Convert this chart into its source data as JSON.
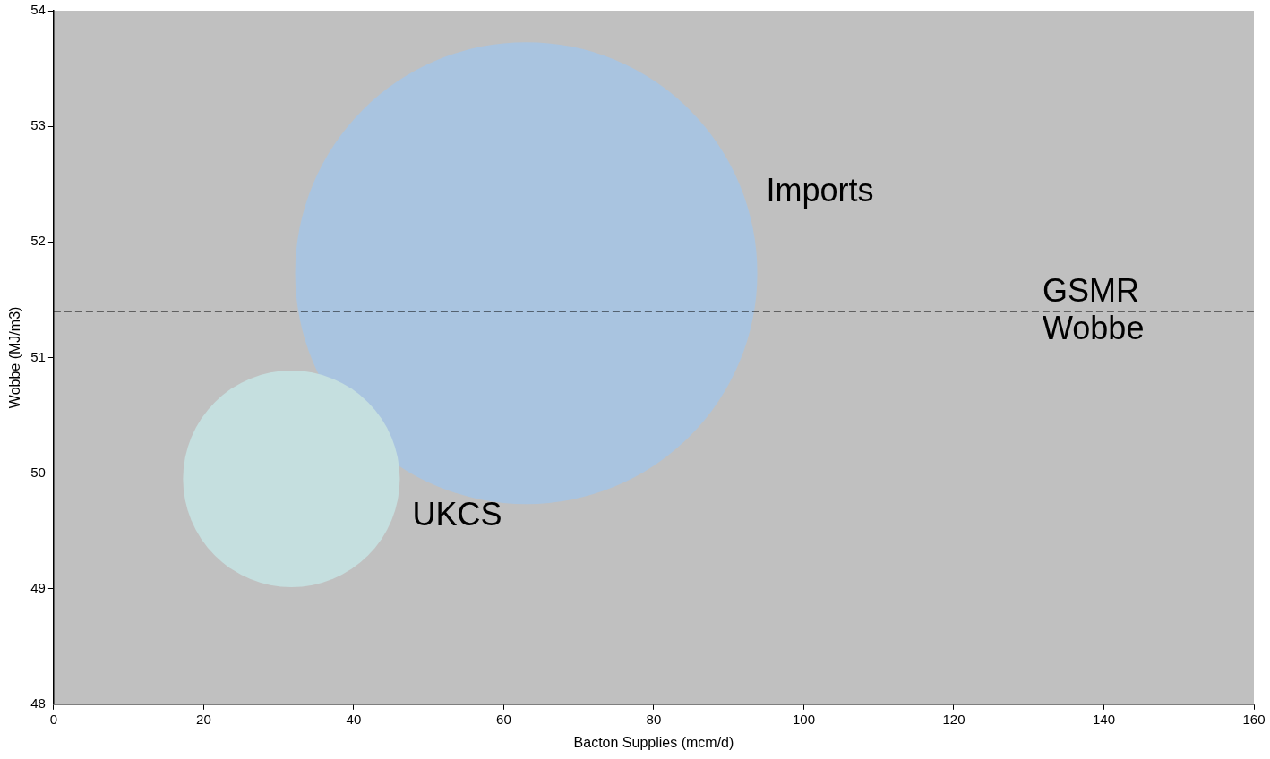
{
  "chart_data": {
    "type": "bubble",
    "xlabel": "Bacton Supplies (mcm/d)",
    "ylabel": "Wobbe (MJ/m3)",
    "xlim": [
      0,
      160
    ],
    "xticks": [
      0,
      20,
      40,
      60,
      80,
      100,
      120,
      140,
      160
    ],
    "ylim": [
      48,
      54
    ],
    "yticks": [
      48,
      49,
      50,
      51,
      52,
      53,
      54
    ],
    "grid": false,
    "legend": false,
    "series": [
      {
        "name": "Imports",
        "color": "#a9c4e0",
        "x": [
          63
        ],
        "values": [
          51.73
        ],
        "sizes": [
          1
        ]
      },
      {
        "name": "UKCS",
        "color": "#c5dfdf",
        "x": [
          31.7
        ],
        "values": [
          49.95
        ],
        "sizes": [
          0.22
        ]
      }
    ],
    "ref_lines": [
      {
        "axis": "y",
        "value": 51.4,
        "label": "GSMR Wobbe",
        "line_style": "dashed",
        "color": "#000000"
      }
    ]
  }
}
